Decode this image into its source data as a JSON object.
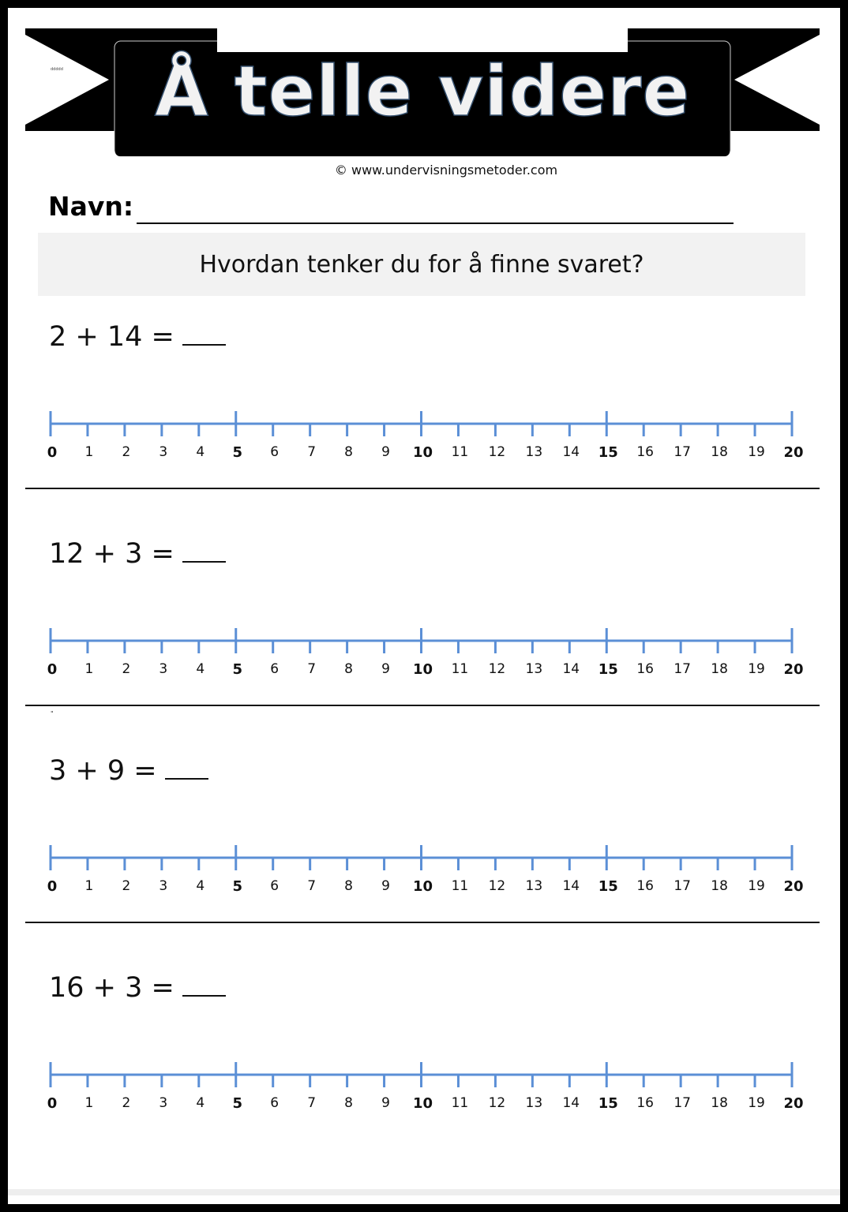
{
  "header": {
    "title": "Å telle videre",
    "tiny_text": "ddddd",
    "copyright": "© www.undervisningsmetoder.com"
  },
  "name_field": {
    "label": "Navn:"
  },
  "question": "Hvordan tenker du for å finne svaret?",
  "number_line": {
    "min": 0,
    "max": 20,
    "major_every": 5,
    "color": "#5b8fd6",
    "labels": [
      "0",
      "1",
      "2",
      "3",
      "4",
      "5",
      "6",
      "7",
      "8",
      "9",
      "10",
      "11",
      "12",
      "13",
      "14",
      "15",
      "16",
      "17",
      "18",
      "19",
      "20"
    ]
  },
  "problems": [
    {
      "equation": "2 + 14 ="
    },
    {
      "equation": "12 + 3 ="
    },
    {
      "equation": "3 + 9 ="
    },
    {
      "equation": "16 + 3 ="
    }
  ],
  "stray_mark": "\""
}
